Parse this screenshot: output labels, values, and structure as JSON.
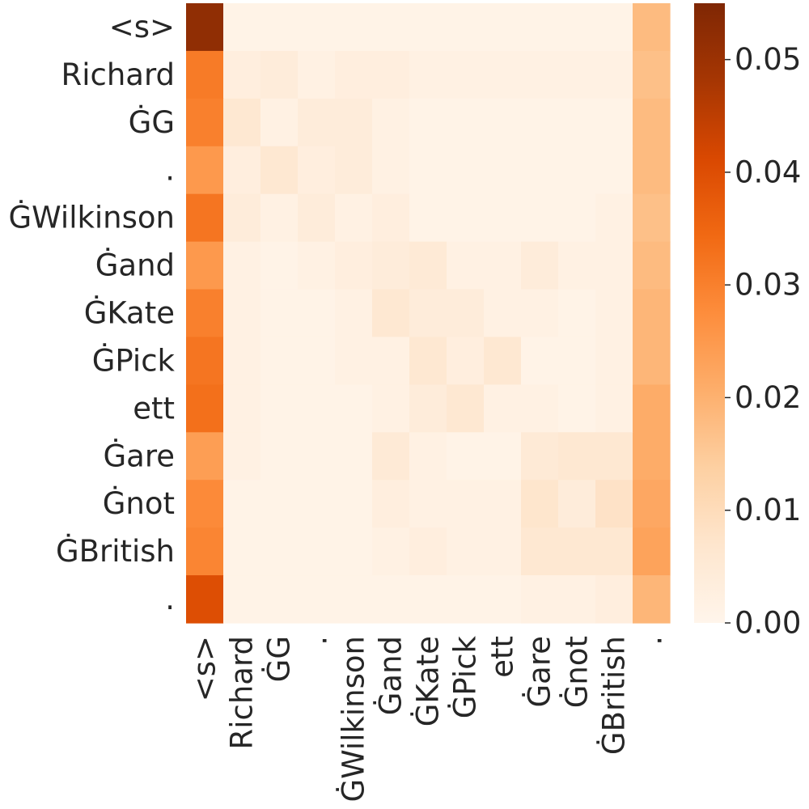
{
  "chart_data": {
    "type": "heatmap",
    "title": "",
    "xlabel": "",
    "ylabel": "",
    "x_labels": [
      "<s>",
      "Richard",
      "ĠG",
      ".",
      "ĠWilkinson",
      "Ġand",
      "ĠKate",
      "ĠPick",
      "ett",
      "Ġare",
      "Ġnot",
      "ĠBritish",
      "."
    ],
    "y_labels": [
      "<s>",
      "Richard",
      "ĠG",
      ".",
      "ĠWilkinson",
      "Ġand",
      "ĠKate",
      "ĠPick",
      "ett",
      "Ġare",
      "Ġnot",
      "ĠBritish",
      "."
    ],
    "values": [
      [
        0.052,
        0.001,
        0.001,
        0.001,
        0.001,
        0.001,
        0.001,
        0.001,
        0.001,
        0.001,
        0.001,
        0.001,
        0.018
      ],
      [
        0.031,
        0.003,
        0.004,
        0.002,
        0.003,
        0.003,
        0.002,
        0.002,
        0.002,
        0.002,
        0.002,
        0.002,
        0.017
      ],
      [
        0.03,
        0.006,
        0.002,
        0.004,
        0.004,
        0.002,
        0.001,
        0.001,
        0.001,
        0.001,
        0.001,
        0.001,
        0.018
      ],
      [
        0.025,
        0.003,
        0.006,
        0.003,
        0.004,
        0.002,
        0.001,
        0.001,
        0.001,
        0.001,
        0.001,
        0.001,
        0.018
      ],
      [
        0.032,
        0.004,
        0.002,
        0.004,
        0.002,
        0.003,
        0.001,
        0.001,
        0.001,
        0.001,
        0.001,
        0.002,
        0.017
      ],
      [
        0.025,
        0.002,
        0.001,
        0.002,
        0.003,
        0.004,
        0.005,
        0.002,
        0.002,
        0.004,
        0.002,
        0.002,
        0.018
      ],
      [
        0.03,
        0.002,
        0.001,
        0.001,
        0.002,
        0.006,
        0.004,
        0.004,
        0.002,
        0.002,
        0.001,
        0.002,
        0.019
      ],
      [
        0.032,
        0.002,
        0.001,
        0.001,
        0.002,
        0.002,
        0.006,
        0.003,
        0.006,
        0.001,
        0.001,
        0.002,
        0.019
      ],
      [
        0.033,
        0.002,
        0.001,
        0.001,
        0.001,
        0.002,
        0.004,
        0.006,
        0.002,
        0.002,
        0.001,
        0.002,
        0.021
      ],
      [
        0.024,
        0.002,
        0.001,
        0.001,
        0.001,
        0.005,
        0.002,
        0.001,
        0.001,
        0.005,
        0.006,
        0.006,
        0.021
      ],
      [
        0.028,
        0.001,
        0.001,
        0.001,
        0.001,
        0.003,
        0.002,
        0.002,
        0.002,
        0.007,
        0.004,
        0.008,
        0.022
      ],
      [
        0.029,
        0.001,
        0.001,
        0.001,
        0.001,
        0.002,
        0.003,
        0.002,
        0.002,
        0.006,
        0.006,
        0.006,
        0.023
      ],
      [
        0.04,
        0.001,
        0.001,
        0.001,
        0.001,
        0.001,
        0.001,
        0.001,
        0.001,
        0.002,
        0.002,
        0.003,
        0.019
      ]
    ],
    "colorbar": {
      "min": 0.0,
      "max": 0.055,
      "ticks": [
        0.0,
        0.01,
        0.02,
        0.03,
        0.04,
        0.05
      ],
      "tick_labels": [
        "0.00",
        "0.01",
        "0.02",
        "0.03",
        "0.04",
        "0.05"
      ]
    },
    "colormap": "Oranges",
    "colormap_stops": [
      "#fff5eb",
      "#fee6ce",
      "#fdd0a2",
      "#fdae6b",
      "#fd8d3c",
      "#f16913",
      "#d94801",
      "#a63603",
      "#7f2704"
    ],
    "grid": false
  }
}
